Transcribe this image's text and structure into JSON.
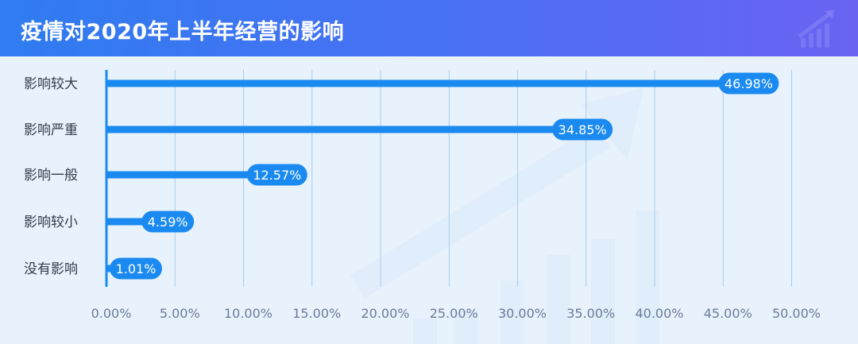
{
  "header": {
    "title": "疫情对2020年上半年经营的影响",
    "icon": "bar-chart-growth-icon"
  },
  "colors": {
    "bar": "#1a8af0",
    "pill": "#1a8af0",
    "pill_text": "#ffffff",
    "axis_text": "#6b7a99",
    "category_text": "#333a4a",
    "grid": "#a9cdef",
    "background": "#e8f2fc"
  },
  "chart_data": {
    "type": "bar",
    "orientation": "horizontal",
    "title": "疫情对2020年上半年经营的影响",
    "xlabel": "",
    "ylabel": "",
    "categories": [
      "影响较大",
      "影响严重",
      "影响一般",
      "影响较小",
      "没有影响"
    ],
    "values": [
      46.98,
      34.85,
      12.57,
      4.59,
      1.01
    ],
    "value_labels": [
      "46.98%",
      "34.85%",
      "12.57%",
      "4.59%",
      "1.01%"
    ],
    "xlim": [
      0,
      50
    ],
    "xticks": [
      0,
      5,
      10,
      15,
      20,
      25,
      30,
      35,
      40,
      45,
      50
    ],
    "xtick_labels": [
      "0.00%",
      "5.00%",
      "10.00%",
      "15.00%",
      "20.00%",
      "25.00%",
      "30.00%",
      "35.00%",
      "40.00%",
      "45.00%",
      "50.00%"
    ],
    "grid": true
  }
}
